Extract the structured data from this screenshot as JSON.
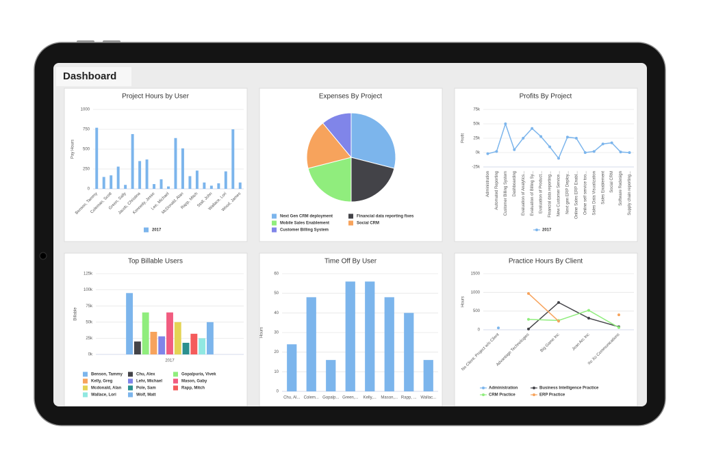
{
  "title": "Dashboard",
  "chart_data": [
    {
      "type": "bar",
      "title": "Project Hours by User",
      "ylabel": "Pay Hours",
      "categories": [
        "Benson, Tammy",
        null,
        "Coleman, Scott",
        null,
        "Green, Sally",
        null,
        "Jacob, Christina",
        null,
        "Kennedy, Jesse",
        null,
        "Lee, Michael",
        null,
        "McDonald, Alan",
        null,
        "Rapp, Mitch",
        null,
        "Stall, John",
        null,
        "Wallace, Lori",
        null,
        "Wood, James"
      ],
      "series": [
        {
          "name": "2017",
          "color": "#7cb5ec",
          "values": [
            770,
            150,
            170,
            280,
            50,
            690,
            350,
            370,
            60,
            120,
            30,
            640,
            510,
            160,
            230,
            80,
            40,
            70,
            220,
            750,
            80
          ]
        }
      ],
      "ylim": [
        0,
        1000
      ],
      "yticks": [
        0,
        250,
        500,
        750,
        1000
      ],
      "grid": true
    },
    {
      "type": "pie",
      "title": "Expenses By Project",
      "categories": [
        "Next Gen CRM deployment",
        "Financial data reporting fixes",
        "Mobile Sales Enablement",
        "Social CRM",
        "Customer Billing System"
      ],
      "values": [
        29,
        21,
        21,
        18,
        11
      ],
      "colors": [
        "#7cb5ec",
        "#434348",
        "#90ed7d",
        "#f7a35c",
        "#8085e9"
      ]
    },
    {
      "type": "line",
      "title": "Profits By Project",
      "ylabel": "Profit",
      "categories": [
        "Administration",
        "Automated Reporting",
        "Customer Billing System",
        "Dashboarding",
        "Evaluation of Analytics...",
        "Evaluation of Billing Sy...",
        "Evaluation of Product...",
        "Financial data reporting...",
        "New Customer Service...",
        "Next gen ERP Deploy...",
        "Online Sales ERP Enabl...",
        "Online self service too...",
        "Sales Data Visualization",
        "Sales Enablement",
        "Social CRM",
        "Software Redesign",
        "Supply chain reporting..."
      ],
      "series": [
        {
          "name": "2017",
          "color": "#7cb5ec",
          "values": [
            -2000,
            2000,
            50000,
            5000,
            25000,
            42000,
            28000,
            10000,
            -10000,
            27000,
            25000,
            0,
            2000,
            15000,
            17000,
            1000,
            0
          ]
        }
      ],
      "ylim": [
        -25000,
        75000
      ],
      "yticks": [
        {
          "value": -25000,
          "label": "-25k"
        },
        {
          "value": 0,
          "label": "0k"
        },
        {
          "value": 25000,
          "label": "25k"
        },
        {
          "value": 50000,
          "label": "50k"
        },
        {
          "value": 75000,
          "label": "75k"
        }
      ],
      "grid": true
    },
    {
      "type": "bar",
      "title": "Top Billable Users",
      "ylabel": "Billable",
      "categories": [
        "2017"
      ],
      "series": [
        {
          "name": "Benson, Tammy",
          "color": "#7cb5ec",
          "values": [
            95000
          ]
        },
        {
          "name": "Chu, Alex",
          "color": "#434348",
          "values": [
            20000
          ]
        },
        {
          "name": "Gopalpuria, Vivek",
          "color": "#90ed7d",
          "values": [
            65000
          ]
        },
        {
          "name": "Kelly, Greg",
          "color": "#f7a35c",
          "values": [
            35000
          ]
        },
        {
          "name": "Lehr, Michael",
          "color": "#8085e9",
          "values": [
            28000
          ]
        },
        {
          "name": "Mason, Gaby",
          "color": "#f15c80",
          "values": [
            65000
          ]
        },
        {
          "name": "Mcdonald, Alan",
          "color": "#e4d354",
          "values": [
            50000
          ]
        },
        {
          "name": "Pole, Sam",
          "color": "#2b908f",
          "values": [
            18000
          ]
        },
        {
          "name": "Rapp, Mitch",
          "color": "#f45b5b",
          "values": [
            32000
          ]
        },
        {
          "name": "Wallace, Lori",
          "color": "#91e8e1",
          "values": [
            25000
          ]
        },
        {
          "name": "Wolf, Matt",
          "color": "#7cb5ec",
          "values": [
            50000
          ]
        }
      ],
      "ylim": [
        0,
        125000
      ],
      "yticks": [
        {
          "value": 0,
          "label": "0k"
        },
        {
          "value": 25000,
          "label": "25k"
        },
        {
          "value": 50000,
          "label": "50k"
        },
        {
          "value": 75000,
          "label": "75k"
        },
        {
          "value": 100000,
          "label": "100k"
        },
        {
          "value": 125000,
          "label": "125k"
        }
      ],
      "grid": true
    },
    {
      "type": "bar",
      "title": "Time Off By User",
      "ylabel": "Hours",
      "categories": [
        "Chu, Al...",
        "Colem...",
        "Gopalp...",
        "Green,...",
        "Kelly,...",
        "Mason,...",
        "Rapp, ...",
        "Wallac..."
      ],
      "values": [
        24,
        48,
        16,
        56,
        56,
        48,
        40,
        16
      ],
      "color": "#7cb5ec",
      "ylim": [
        0,
        60
      ],
      "yticks": [
        0,
        10,
        20,
        30,
        40,
        50,
        60
      ],
      "grid": true
    },
    {
      "type": "line",
      "title": "Practice Hours By Client",
      "ylabel": "Hours",
      "categories": [
        "No Client: Project w/o Client",
        "Advantage Technologies",
        "Big Game Inc",
        "Jean Arc Inc",
        "Xo Xo Communications"
      ],
      "series": [
        {
          "name": "Administration",
          "color": "#7cb5ec",
          "values": [
            50,
            null,
            null,
            null,
            null
          ]
        },
        {
          "name": "Business Intelligence Practice",
          "color": "#434348",
          "values": [
            null,
            20,
            730,
            310,
            80
          ]
        },
        {
          "name": "CRM Practice",
          "color": "#90ed7d",
          "values": [
            null,
            280,
            250,
            520,
            60
          ]
        },
        {
          "name": "ERP Practice",
          "color": "#f7a35c",
          "values": [
            null,
            970,
            230,
            null,
            400
          ]
        }
      ],
      "ylim": [
        0,
        1500
      ],
      "yticks": [
        0,
        500,
        1000,
        1500
      ],
      "grid": true
    }
  ]
}
